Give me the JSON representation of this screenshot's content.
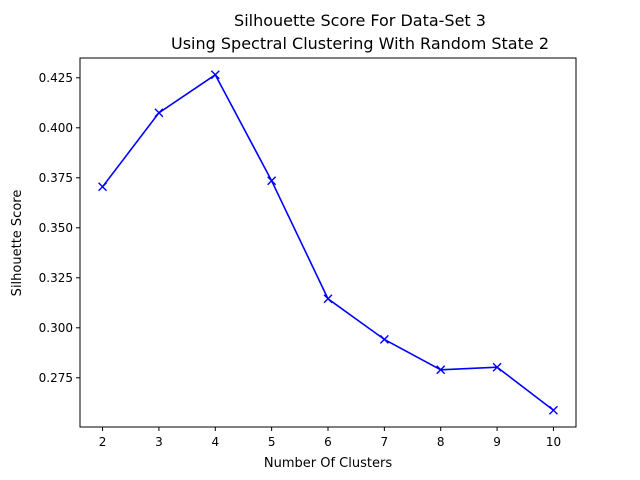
{
  "chart_data": {
    "type": "line",
    "title_line1": "Silhouette Score For Data-Set 3",
    "title_line2": "Using Spectral Clustering With Random State 2",
    "xlabel": "Number Of Clusters",
    "ylabel": "Silhouette Score",
    "x": [
      2,
      3,
      4,
      5,
      6,
      7,
      8,
      9,
      10
    ],
    "series": [
      {
        "values": [
          0.3705,
          0.4075,
          0.4265,
          0.3735,
          0.3145,
          0.2942,
          0.279,
          0.2803,
          0.2588
        ],
        "color": "#0000ff",
        "marker": "x"
      }
    ],
    "xticks": [
      "2",
      "3",
      "4",
      "5",
      "6",
      "7",
      "8",
      "9",
      "10"
    ],
    "yticks": [
      "0.275",
      "0.300",
      "0.325",
      "0.350",
      "0.375",
      "0.400",
      "0.425"
    ],
    "xlim": [
      1.6,
      10.4
    ],
    "ylim": [
      0.2504,
      0.4349
    ],
    "grid": false
  }
}
